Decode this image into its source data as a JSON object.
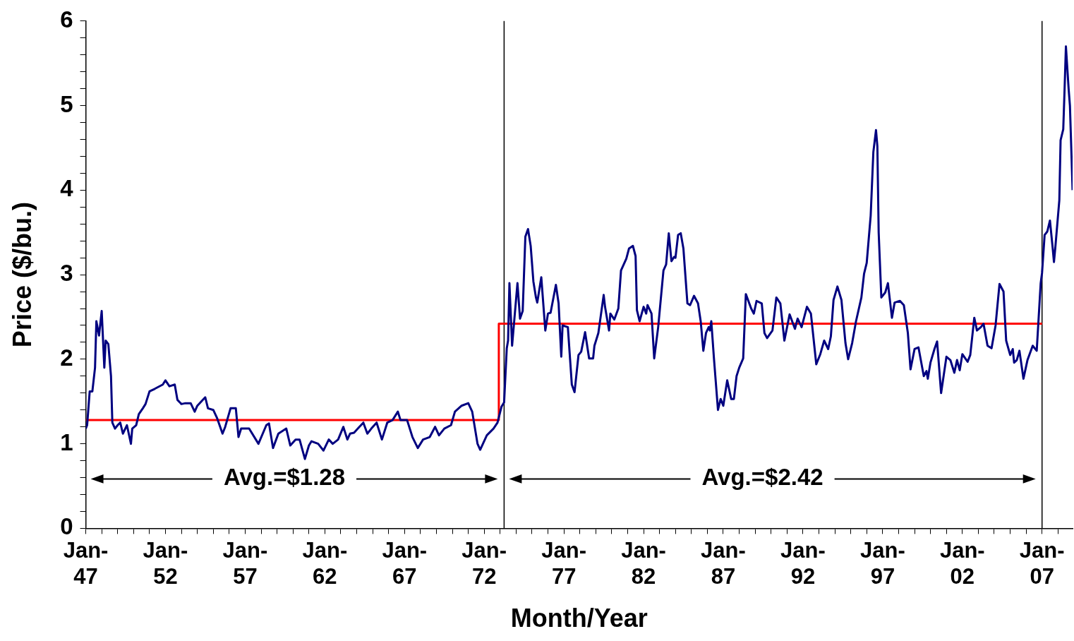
{
  "chart_data": {
    "type": "line",
    "xlabel": "Month/Year",
    "ylabel": "Price ($/bu.)",
    "xlim": [
      "1947-01",
      "2008-12"
    ],
    "xticks": [
      {
        "value": "1947-01",
        "label": "Jan-47"
      },
      {
        "value": "1948-01",
        "label": null
      },
      {
        "value": "1949-01",
        "label": null
      },
      {
        "value": "1950-01",
        "label": null
      },
      {
        "value": "1951-01",
        "label": null
      },
      {
        "value": "1952-01",
        "label": "Jan-52"
      },
      {
        "value": "1953-01",
        "label": null
      },
      {
        "value": "1954-01",
        "label": null
      },
      {
        "value": "1955-01",
        "label": null
      },
      {
        "value": "1956-01",
        "label": null
      },
      {
        "value": "1957-01",
        "label": "Jan-57"
      },
      {
        "value": "1958-01",
        "label": null
      },
      {
        "value": "1959-01",
        "label": null
      },
      {
        "value": "1960-01",
        "label": null
      },
      {
        "value": "1961-01",
        "label": null
      },
      {
        "value": "1962-01",
        "label": "Jan-62"
      },
      {
        "value": "1963-01",
        "label": null
      },
      {
        "value": "1964-01",
        "label": null
      },
      {
        "value": "1965-01",
        "label": null
      },
      {
        "value": "1966-01",
        "label": null
      },
      {
        "value": "1967-01",
        "label": "Jan-67"
      },
      {
        "value": "1968-01",
        "label": null
      },
      {
        "value": "1969-01",
        "label": null
      },
      {
        "value": "1970-01",
        "label": null
      },
      {
        "value": "1971-01",
        "label": null
      },
      {
        "value": "1972-01",
        "label": "Jan-72"
      },
      {
        "value": "1973-01",
        "label": null
      },
      {
        "value": "1974-01",
        "label": null
      },
      {
        "value": "1975-01",
        "label": null
      },
      {
        "value": "1976-01",
        "label": null
      },
      {
        "value": "1977-01",
        "label": "Jan-77"
      },
      {
        "value": "1978-01",
        "label": null
      },
      {
        "value": "1979-01",
        "label": null
      },
      {
        "value": "1980-01",
        "label": null
      },
      {
        "value": "1981-01",
        "label": null
      },
      {
        "value": "1982-01",
        "label": "Jan-82"
      },
      {
        "value": "1983-01",
        "label": null
      },
      {
        "value": "1984-01",
        "label": null
      },
      {
        "value": "1985-01",
        "label": null
      },
      {
        "value": "1986-01",
        "label": null
      },
      {
        "value": "1987-01",
        "label": "Jan-87"
      },
      {
        "value": "1988-01",
        "label": null
      },
      {
        "value": "1989-01",
        "label": null
      },
      {
        "value": "1990-01",
        "label": null
      },
      {
        "value": "1991-01",
        "label": null
      },
      {
        "value": "1992-01",
        "label": "Jan-92"
      },
      {
        "value": "1993-01",
        "label": null
      },
      {
        "value": "1994-01",
        "label": null
      },
      {
        "value": "1995-01",
        "label": null
      },
      {
        "value": "1996-01",
        "label": null
      },
      {
        "value": "1997-01",
        "label": "Jan-97"
      },
      {
        "value": "1998-01",
        "label": null
      },
      {
        "value": "1999-01",
        "label": null
      },
      {
        "value": "2000-01",
        "label": null
      },
      {
        "value": "2001-01",
        "label": null
      },
      {
        "value": "2002-01",
        "label": "Jan-02"
      },
      {
        "value": "2003-01",
        "label": null
      },
      {
        "value": "2004-01",
        "label": null
      },
      {
        "value": "2005-01",
        "label": null
      },
      {
        "value": "2006-01",
        "label": null
      },
      {
        "value": "2007-01",
        "label": "Jan-07"
      },
      {
        "value": "2008-01",
        "label": null
      }
    ],
    "ylim": [
      0,
      6
    ],
    "yticks": [
      0,
      {
        "value": 0.2,
        "label": null
      },
      {
        "value": 0.4,
        "label": null
      },
      {
        "value": 0.6,
        "label": null
      },
      {
        "value": 0.8,
        "label": null
      },
      1,
      {
        "value": 1.2,
        "label": null
      },
      {
        "value": 1.4,
        "label": null
      },
      {
        "value": 1.6,
        "label": null
      },
      {
        "value": 1.8,
        "label": null
      },
      2,
      {
        "value": 2.2,
        "label": null
      },
      {
        "value": 2.4,
        "label": null
      },
      {
        "value": 2.6,
        "label": null
      },
      {
        "value": 2.8,
        "label": null
      },
      3,
      {
        "value": 3.2,
        "label": null
      },
      {
        "value": 3.4,
        "label": null
      },
      {
        "value": 3.6,
        "label": null
      },
      {
        "value": 3.8,
        "label": null
      },
      4,
      {
        "value": 4.2,
        "label": null
      },
      {
        "value": 4.4,
        "label": null
      },
      {
        "value": 4.6,
        "label": null
      },
      {
        "value": 4.8,
        "label": null
      },
      5,
      {
        "value": 5.2,
        "label": null
      },
      {
        "value": 5.4,
        "label": null
      },
      {
        "value": 5.6,
        "label": null
      },
      {
        "value": 5.8,
        "label": null
      },
      6
    ],
    "grid": false,
    "legend": false,
    "marker": "none",
    "series": [
      {
        "color": "#000080",
        "x": [
          "1947-01",
          "1947-02",
          "1947-04",
          "1947-06",
          "1947-08",
          "1947-09",
          "1947-11",
          "1948-01",
          "1948-03",
          "1948-04",
          "1948-06",
          "1948-08",
          "1948-09",
          "1948-11",
          "1949-01",
          "1949-03",
          "1949-05",
          "1949-08",
          "1949-11",
          "1949-12",
          "1950-03",
          "1950-05",
          "1950-08",
          "1950-10",
          "1951-01",
          "1951-05",
          "1951-11",
          "1952-01",
          "1952-04",
          "1952-08",
          "1952-10",
          "1953-01",
          "1953-04",
          "1953-08",
          "1953-11",
          "1954-01",
          "1954-07",
          "1954-09",
          "1955-01",
          "1955-04",
          "1955-08",
          "1955-10",
          "1956-02",
          "1956-06",
          "1956-08",
          "1956-10",
          "1957-04",
          "1957-11",
          "1958-05",
          "1958-07",
          "1958-10",
          "1959-02",
          "1959-08",
          "1959-11",
          "1960-03",
          "1960-06",
          "1960-10",
          "1961-01",
          "1961-03",
          "1961-08",
          "1961-12",
          "1962-04",
          "1962-07",
          "1962-11",
          "1963-03",
          "1963-06",
          "1963-08",
          "1963-11",
          "1964-03",
          "1964-06",
          "1964-09",
          "1964-12",
          "1965-04",
          "1965-08",
          "1965-12",
          "1966-04",
          "1966-08",
          "1966-10",
          "1967-03",
          "1967-07",
          "1967-11",
          "1968-03",
          "1968-08",
          "1968-12",
          "1969-03",
          "1969-07",
          "1969-12",
          "1970-03",
          "1970-08",
          "1971-01",
          "1971-04",
          "1971-08",
          "1971-10",
          "1972-03",
          "1972-08",
          "1972-11",
          "1973-02",
          "1973-04",
          "1973-06",
          "1973-07",
          "1973-08",
          "1973-10",
          "1974-02",
          "1974-04",
          "1974-06",
          "1974-08",
          "1974-10",
          "1974-12",
          "1975-02",
          "1975-04",
          "1975-05",
          "1975-08",
          "1975-11",
          "1976-01",
          "1976-03",
          "1976-07",
          "1976-09",
          "1976-11",
          "1976-12",
          "1977-04",
          "1977-07",
          "1977-09",
          "1977-12",
          "1978-02",
          "1978-05",
          "1978-08",
          "1978-11",
          "1978-12",
          "1979-03",
          "1979-07",
          "1979-08",
          "1979-11",
          "1979-12",
          "1980-03",
          "1980-06",
          "1980-08",
          "1980-12",
          "1981-02",
          "1981-05",
          "1981-07",
          "1981-08",
          "1981-10",
          "1982-01",
          "1982-03",
          "1982-04",
          "1982-07",
          "1982-09",
          "1982-12",
          "1983-04",
          "1983-06",
          "1983-08",
          "1983-10",
          "1983-12",
          "1984-01",
          "1984-03",
          "1984-05",
          "1984-07",
          "1984-10",
          "1984-12",
          "1985-03",
          "1985-06",
          "1985-08",
          "1985-10",
          "1985-12",
          "1986-02",
          "1986-03",
          "1986-04",
          "1986-06",
          "1986-09",
          "1986-11",
          "1987-01",
          "1987-04",
          "1987-07",
          "1987-09",
          "1987-11",
          "1988-01",
          "1988-04",
          "1988-06",
          "1988-10",
          "1988-12",
          "1989-02",
          "1989-06",
          "1989-08",
          "1989-10",
          "1990-02",
          "1990-05",
          "1990-08",
          "1990-11",
          "1991-03",
          "1991-07",
          "1991-09",
          "1991-12",
          "1992-04",
          "1992-07",
          "1992-11",
          "1993-02",
          "1993-05",
          "1993-08",
          "1993-10",
          "1993-12",
          "1994-03",
          "1994-06",
          "1994-09",
          "1994-11",
          "1995-02",
          "1995-05",
          "1995-09",
          "1995-11",
          "1996-01",
          "1996-04",
          "1996-06",
          "1996-08",
          "1996-09",
          "1996-10",
          "1996-12",
          "1997-03",
          "1997-05",
          "1997-08",
          "1997-10",
          "1998-02",
          "1998-05",
          "1998-08",
          "1998-10",
          "1999-01",
          "1999-04",
          "1999-08",
          "1999-10",
          "1999-11",
          "2000-01",
          "2000-04",
          "2000-06",
          "2000-09",
          "2001-01",
          "2001-04",
          "2001-07",
          "2001-09",
          "2001-11",
          "2002-01",
          "2002-05",
          "2002-07",
          "2002-10",
          "2002-12",
          "2003-03",
          "2003-05",
          "2003-08",
          "2003-11",
          "2004-02",
          "2004-05",
          "2004-08",
          "2004-10",
          "2005-01",
          "2005-03",
          "2005-04",
          "2005-06",
          "2005-08",
          "2005-11",
          "2006-02",
          "2006-06",
          "2006-09",
          "2006-12",
          "2007-01",
          "2007-03",
          "2007-05",
          "2007-07",
          "2007-09",
          "2007-10",
          "2007-11",
          "2008-02",
          "2008-03",
          "2008-05",
          "2008-06",
          "2008-07",
          "2008-09",
          "2008-10",
          "2008-12"
        ],
        "values": [
          1.18,
          1.22,
          1.62,
          1.62,
          1.9,
          2.45,
          2.28,
          2.57,
          1.9,
          2.22,
          2.18,
          1.8,
          1.25,
          1.18,
          1.22,
          1.25,
          1.12,
          1.22,
          1.0,
          1.18,
          1.22,
          1.35,
          1.42,
          1.47,
          1.62,
          1.65,
          1.7,
          1.75,
          1.68,
          1.7,
          1.52,
          1.47,
          1.48,
          1.48,
          1.38,
          1.45,
          1.55,
          1.42,
          1.4,
          1.3,
          1.12,
          1.2,
          1.42,
          1.42,
          1.08,
          1.18,
          1.18,
          1.0,
          1.22,
          1.24,
          0.95,
          1.12,
          1.18,
          0.98,
          1.05,
          1.05,
          0.82,
          0.98,
          1.03,
          1.0,
          0.92,
          1.05,
          1.0,
          1.05,
          1.2,
          1.05,
          1.12,
          1.13,
          1.2,
          1.25,
          1.12,
          1.18,
          1.25,
          1.05,
          1.25,
          1.28,
          1.38,
          1.28,
          1.28,
          1.08,
          0.95,
          1.05,
          1.08,
          1.2,
          1.1,
          1.18,
          1.22,
          1.38,
          1.45,
          1.48,
          1.38,
          1.0,
          0.93,
          1.1,
          1.18,
          1.25,
          1.44,
          1.49,
          2.13,
          2.22,
          2.9,
          2.16,
          2.9,
          2.48,
          2.57,
          3.45,
          3.54,
          3.34,
          2.92,
          2.73,
          2.67,
          2.97,
          2.34,
          2.54,
          2.55,
          2.88,
          2.66,
          2.03,
          2.4,
          2.38,
          1.7,
          1.61,
          2.05,
          2.09,
          2.32,
          2.01,
          2.01,
          2.16,
          2.31,
          2.76,
          2.62,
          2.34,
          2.54,
          2.47,
          2.6,
          3.05,
          3.19,
          3.31,
          3.34,
          3.22,
          2.58,
          2.45,
          2.62,
          2.54,
          2.64,
          2.54,
          2.01,
          2.38,
          3.05,
          3.12,
          3.49,
          3.16,
          3.21,
          3.2,
          3.47,
          3.49,
          3.31,
          2.66,
          2.64,
          2.75,
          2.66,
          2.45,
          2.1,
          2.31,
          2.38,
          2.34,
          2.45,
          2.01,
          1.4,
          1.53,
          1.45,
          1.75,
          1.53,
          1.53,
          1.8,
          1.9,
          2.01,
          2.77,
          2.6,
          2.54,
          2.69,
          2.66,
          2.31,
          2.25,
          2.34,
          2.73,
          2.66,
          2.22,
          2.53,
          2.36,
          2.48,
          2.38,
          2.62,
          2.54,
          1.94,
          2.06,
          2.22,
          2.12,
          2.27,
          2.7,
          2.86,
          2.7,
          2.19,
          2.0,
          2.19,
          2.45,
          2.73,
          3.01,
          3.14,
          3.7,
          4.45,
          4.71,
          4.52,
          3.5,
          2.73,
          2.79,
          2.9,
          2.49,
          2.67,
          2.69,
          2.64,
          2.31,
          1.88,
          2.12,
          2.14,
          1.8,
          1.86,
          1.77,
          1.96,
          2.12,
          2.21,
          1.6,
          2.03,
          1.99,
          1.84,
          1.99,
          1.87,
          2.06,
          1.97,
          2.05,
          2.49,
          2.34,
          2.38,
          2.42,
          2.16,
          2.13,
          2.4,
          2.89,
          2.8,
          2.22,
          2.05,
          2.12,
          1.96,
          1.99,
          2.1,
          1.77,
          1.99,
          2.16,
          2.1,
          2.9,
          3.02,
          3.47,
          3.51,
          3.64,
          3.32,
          3.15,
          3.32,
          3.88,
          4.59,
          4.72,
          5.2,
          5.7,
          5.2,
          5.0,
          4.0
        ]
      },
      {
        "color": "#ff0000",
        "x": [
          "1947-01",
          "1972-12",
          "1972-12",
          "2007-01"
        ],
        "values": [
          1.28,
          1.28,
          2.42,
          2.42
        ]
      }
    ],
    "ref_lines": [
      {
        "axis": "x",
        "value": "1973-04",
        "color": "#000000"
      },
      {
        "axis": "x",
        "value": "2007-01",
        "color": "#000000"
      }
    ],
    "annotations": [
      "Avg.=$1.28",
      "Avg.=$2.42"
    ]
  }
}
